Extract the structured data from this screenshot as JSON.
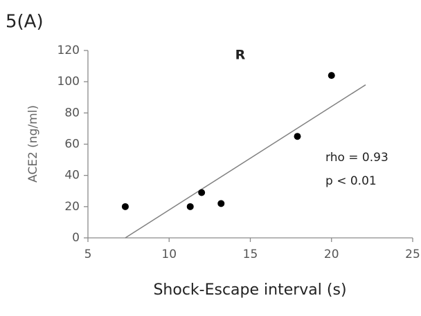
{
  "chart_data": {
    "type": "scatter",
    "title": "5(A)",
    "subtitle": "R",
    "x_label": "Shock-Escape interval (s)",
    "y_label": "ACE2 (ng/ml)",
    "x": [
      7.3,
      11.3,
      12.0,
      13.2,
      17.9,
      20.0
    ],
    "values": [
      20,
      20,
      29,
      22,
      65,
      104
    ],
    "color": "#000000",
    "trendline": {
      "x": [
        7.3,
        22.1
      ],
      "values": [
        0,
        98
      ],
      "color": "#808080"
    },
    "annotations": [
      "rho = 0.93",
      "p < 0.01"
    ],
    "xlim": [
      5,
      25
    ],
    "xticks": [
      5,
      10,
      15,
      20,
      25
    ],
    "ylim": [
      0,
      120
    ],
    "yticks": [
      0,
      20,
      40,
      60,
      80,
      100,
      120
    ],
    "grid": false
  }
}
